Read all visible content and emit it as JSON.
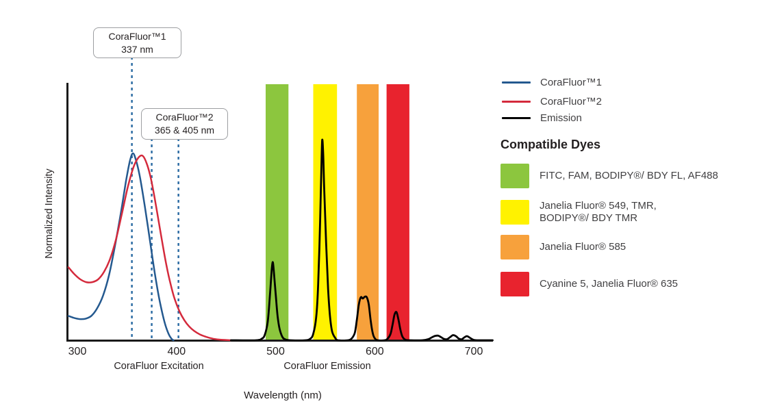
{
  "colors": {
    "axis": "#1A1A1A",
    "text": "#231F20",
    "legend_text": "#414042",
    "dashed_line": "#2E6DA4",
    "annotation_border": "#9C9EA1"
  },
  "annotations": [
    {
      "line1": "CoraFluor™1",
      "line2": "337 nm"
    },
    {
      "line1": "CoraFluor™2",
      "line2": "365 & 405 nm"
    }
  ],
  "legend": {
    "items": [
      {
        "label": "CoraFluor™1",
        "color": "#24598F"
      },
      {
        "label": "CoraFluor™2",
        "color": "#D42A3C"
      },
      {
        "label": "Emission",
        "color": "#000000"
      }
    ]
  },
  "compatible_dyes": {
    "heading": "Compatible Dyes",
    "items": [
      {
        "name": "green-filter",
        "color": "#8CC63E",
        "lines": [
          "FITC, FAM, BODIPY®/ BDY FL, AF488"
        ]
      },
      {
        "name": "yellow-filter",
        "color": "#FFF200",
        "lines": [
          "Janelia Fluor® 549, TMR,",
          "BODIPY®/ BDY TMR"
        ]
      },
      {
        "name": "orange-filter",
        "color": "#F7A13C",
        "lines": [
          "Janelia Fluor® 585"
        ]
      },
      {
        "name": "red-filter",
        "color": "#E8232E",
        "lines": [
          "Cyanine 5, Janelia Fluor® 635"
        ]
      }
    ]
  },
  "chart_data": {
    "type": "line",
    "title": "",
    "xlabel": "Wavelength (nm)",
    "ylabel": "Normalized Intensity",
    "x_ticks": [
      300,
      400,
      500,
      600,
      700
    ],
    "x_range": [
      291,
      719
    ],
    "ylim": [
      0,
      1
    ],
    "grid": false,
    "legend_position": "right",
    "section_labels": [
      {
        "label": "CoraFluor Excitation"
      },
      {
        "label": "CoraFluor Emission"
      }
    ],
    "marker_lines": [
      {
        "label": "CoraFluor™1 337 nm",
        "nm": 337,
        "x_display_nm": 355
      },
      {
        "label": "CoraFluor™2 365 nm",
        "nm": 365,
        "x_display_nm": 375
      },
      {
        "label": "CoraFluor™2 405 nm",
        "nm": 405,
        "x_display_nm": 402
      }
    ],
    "bands": [
      {
        "name": "green",
        "from_nm": 490,
        "to_nm": 513,
        "color": "#8CC63E"
      },
      {
        "name": "yellow",
        "from_nm": 538,
        "to_nm": 562,
        "color": "#FFF200"
      },
      {
        "name": "orange",
        "from_nm": 582,
        "to_nm": 604,
        "color": "#F7A13C"
      },
      {
        "name": "red",
        "from_nm": 612,
        "to_nm": 635,
        "color": "#E8232E"
      }
    ],
    "series": [
      {
        "name": "CoraFluor™1",
        "color": "#24598F",
        "width": 2.5,
        "points": [
          [
            291,
            0.095
          ],
          [
            296,
            0.088
          ],
          [
            302,
            0.083
          ],
          [
            308,
            0.084
          ],
          [
            314,
            0.095
          ],
          [
            320,
            0.125
          ],
          [
            326,
            0.175
          ],
          [
            332,
            0.255
          ],
          [
            338,
            0.37
          ],
          [
            344,
            0.5
          ],
          [
            349,
            0.62
          ],
          [
            353,
            0.7
          ],
          [
            356,
            0.73
          ],
          [
            359,
            0.705
          ],
          [
            363,
            0.64
          ],
          [
            368,
            0.525
          ],
          [
            373,
            0.395
          ],
          [
            378,
            0.265
          ],
          [
            383,
            0.155
          ],
          [
            388,
            0.07
          ],
          [
            392,
            0.025
          ],
          [
            395,
            0.006
          ],
          [
            397,
            0
          ]
        ]
      },
      {
        "name": "CoraFluor™2",
        "color": "#D42A3C",
        "width": 2.5,
        "points": [
          [
            291,
            0.285
          ],
          [
            297,
            0.258
          ],
          [
            303,
            0.238
          ],
          [
            309,
            0.227
          ],
          [
            315,
            0.227
          ],
          [
            321,
            0.238
          ],
          [
            327,
            0.268
          ],
          [
            333,
            0.318
          ],
          [
            339,
            0.395
          ],
          [
            345,
            0.495
          ],
          [
            351,
            0.6
          ],
          [
            357,
            0.68
          ],
          [
            362,
            0.715
          ],
          [
            366,
            0.72
          ],
          [
            370,
            0.69
          ],
          [
            374,
            0.635
          ],
          [
            378,
            0.555
          ],
          [
            382,
            0.465
          ],
          [
            386,
            0.375
          ],
          [
            390,
            0.29
          ],
          [
            394,
            0.22
          ],
          [
            398,
            0.163
          ],
          [
            403,
            0.113
          ],
          [
            408,
            0.078
          ],
          [
            413,
            0.053
          ],
          [
            418,
            0.036
          ],
          [
            424,
            0.022
          ],
          [
            430,
            0.013
          ],
          [
            437,
            0.006
          ],
          [
            445,
            0.002
          ],
          [
            455,
            0
          ]
        ]
      },
      {
        "name": "Emission",
        "color": "#000000",
        "width": 2.8,
        "points": [
          [
            455,
            0
          ],
          [
            480,
            0
          ],
          [
            486,
            0.006
          ],
          [
            489,
            0.02
          ],
          [
            492,
            0.07
          ],
          [
            494,
            0.16
          ],
          [
            496,
            0.27
          ],
          [
            497,
            0.305
          ],
          [
            498,
            0.28
          ],
          [
            500,
            0.185
          ],
          [
            502,
            0.095
          ],
          [
            504,
            0.045
          ],
          [
            507,
            0.012
          ],
          [
            510,
            0.003
          ],
          [
            515,
            0
          ],
          [
            530,
            0
          ],
          [
            535,
            0.006
          ],
          [
            538,
            0.025
          ],
          [
            541,
            0.09
          ],
          [
            543,
            0.22
          ],
          [
            545,
            0.47
          ],
          [
            546,
            0.64
          ],
          [
            547,
            0.78
          ],
          [
            548,
            0.73
          ],
          [
            549,
            0.6
          ],
          [
            551,
            0.38
          ],
          [
            553,
            0.2
          ],
          [
            555,
            0.09
          ],
          [
            557,
            0.035
          ],
          [
            560,
            0.01
          ],
          [
            563,
            0
          ],
          [
            573,
            0
          ],
          [
            577,
            0.008
          ],
          [
            580,
            0.03
          ],
          [
            582,
            0.08
          ],
          [
            584,
            0.14
          ],
          [
            586,
            0.168
          ],
          [
            588,
            0.163
          ],
          [
            590,
            0.17
          ],
          [
            592,
            0.168
          ],
          [
            594,
            0.14
          ],
          [
            596,
            0.075
          ],
          [
            598,
            0.028
          ],
          [
            600,
            0.008
          ],
          [
            603,
            0
          ],
          [
            610,
            0
          ],
          [
            613,
            0.006
          ],
          [
            616,
            0.025
          ],
          [
            618,
            0.06
          ],
          [
            620,
            0.1
          ],
          [
            622,
            0.11
          ],
          [
            624,
            0.08
          ],
          [
            626,
            0.04
          ],
          [
            628,
            0.014
          ],
          [
            631,
            0.002
          ],
          [
            636,
            0
          ],
          [
            648,
            0
          ],
          [
            654,
            0.004
          ],
          [
            658,
            0.012
          ],
          [
            661,
            0.017
          ],
          [
            664,
            0.018
          ],
          [
            667,
            0.012
          ],
          [
            670,
            0.005
          ],
          [
            673,
            0.004
          ],
          [
            676,
            0.012
          ],
          [
            679,
            0.02
          ],
          [
            682,
            0.016
          ],
          [
            685,
            0.006
          ],
          [
            688,
            0.004
          ],
          [
            690,
            0.01
          ],
          [
            693,
            0.016
          ],
          [
            696,
            0.01
          ],
          [
            699,
            0.003
          ],
          [
            703,
            0
          ],
          [
            719,
            0
          ]
        ]
      }
    ]
  }
}
